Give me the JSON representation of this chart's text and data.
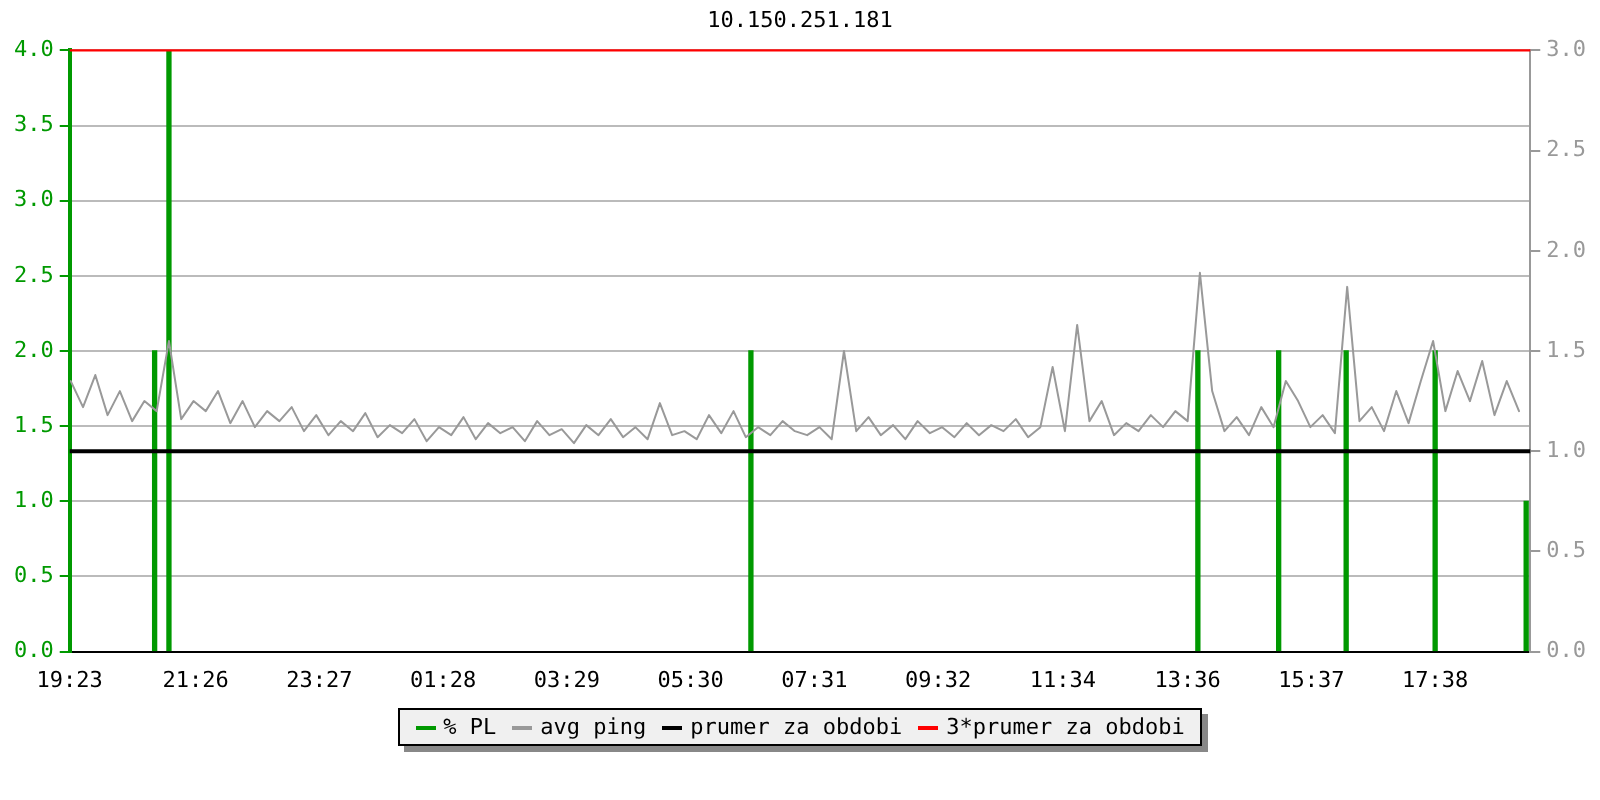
{
  "chart_data": {
    "type": "line",
    "title": "10.150.251.181",
    "xlim": [
      "--01-01T19:23",
      "--01-02T19:11"
    ],
    "xticks": [
      {
        "value": "--01-01T19:23",
        "label": "19:23"
      },
      {
        "value": "--01-01T21:26",
        "label": "21:26"
      },
      {
        "value": "--01-01T23:27",
        "label": "23:27"
      },
      {
        "value": "--01-02T01:28",
        "label": "01:28"
      },
      {
        "value": "--01-02T03:29",
        "label": "03:29"
      },
      {
        "value": "--01-02T05:30",
        "label": "05:30"
      },
      {
        "value": "--01-02T07:31",
        "label": "07:31"
      },
      {
        "value": "--01-02T09:32",
        "label": "09:32"
      },
      {
        "value": "--01-02T11:34",
        "label": "11:34"
      },
      {
        "value": "--01-02T13:36",
        "label": "13:36"
      },
      {
        "value": "--01-02T15:37",
        "label": "15:37"
      },
      {
        "value": "--01-02T17:38",
        "label": "17:38"
      }
    ],
    "ylim": [
      0,
      4
    ],
    "yticks": [
      {
        "value": 0,
        "label": "0.0"
      },
      0.5,
      {
        "value": 1,
        "label": "1.0"
      },
      1.5,
      {
        "value": 2,
        "label": "2.0"
      },
      2.5,
      {
        "value": 3,
        "label": "3.0"
      },
      3.5,
      {
        "value": 4,
        "label": "4.0"
      }
    ],
    "y2lim": [
      0,
      3
    ],
    "y2ticks": [
      {
        "value": 0,
        "label": "0.0"
      },
      0.5,
      {
        "value": 1,
        "label": "1.0"
      },
      1.5,
      {
        "value": 2,
        "label": "2.0"
      },
      2.5,
      {
        "value": 3,
        "label": "3.0"
      }
    ],
    "grid": "y",
    "legend": "bottom",
    "series": [
      {
        "name": "% PL",
        "type": "bar",
        "color": "#009900",
        "x": [
          "--01-01T20:46",
          "--01-01T21:00",
          "--01-02T06:29",
          "--01-02T13:46",
          "--01-02T15:05",
          "--01-02T16:11",
          "--01-02T17:38",
          "--01-02T19:07"
        ],
        "values": [
          2,
          4,
          2,
          2,
          2,
          2,
          2,
          1
        ]
      },
      {
        "name": "avg ping",
        "axis": "y2",
        "color": "#999999",
        "x": [
          "--01-01T19:24",
          "--01-01T19:36",
          "--01-01T19:48",
          "--01-01T20:00",
          "--01-01T20:12",
          "--01-01T20:24",
          "--01-01T20:36",
          "--01-01T20:48",
          "--01-01T21:00",
          "--01-01T21:12",
          "--01-01T21:24",
          "--01-01T21:36",
          "--01-01T21:48",
          "--01-01T22:00",
          "--01-01T22:12",
          "--01-01T22:24",
          "--01-01T22:36",
          "--01-01T22:48",
          "--01-01T23:00",
          "--01-01T23:12",
          "--01-01T23:24",
          "--01-01T23:36",
          "--01-01T23:48",
          "--01-02T00:00",
          "--01-02T00:12",
          "--01-02T00:24",
          "--01-02T00:36",
          "--01-02T00:48",
          "--01-02T01:00",
          "--01-02T01:12",
          "--01-02T01:24",
          "--01-02T01:36",
          "--01-02T01:48",
          "--01-02T02:00",
          "--01-02T02:12",
          "--01-02T02:24",
          "--01-02T02:36",
          "--01-02T02:48",
          "--01-02T03:00",
          "--01-02T03:12",
          "--01-02T03:24",
          "--01-02T03:36",
          "--01-02T03:48",
          "--01-02T04:00",
          "--01-02T04:12",
          "--01-02T04:24",
          "--01-02T04:36",
          "--01-02T04:48",
          "--01-02T05:00",
          "--01-02T05:12",
          "--01-02T05:24",
          "--01-02T05:36",
          "--01-02T05:48",
          "--01-02T06:00",
          "--01-02T06:12",
          "--01-02T06:24",
          "--01-02T06:36",
          "--01-02T06:48",
          "--01-02T07:00",
          "--01-02T07:12",
          "--01-02T07:24",
          "--01-02T07:36",
          "--01-02T07:48",
          "--01-02T08:00",
          "--01-02T08:12",
          "--01-02T08:24",
          "--01-02T08:36",
          "--01-02T08:48",
          "--01-02T09:00",
          "--01-02T09:12",
          "--01-02T09:24",
          "--01-02T09:36",
          "--01-02T09:48",
          "--01-02T10:00",
          "--01-02T10:12",
          "--01-02T10:24",
          "--01-02T10:36",
          "--01-02T10:48",
          "--01-02T11:00",
          "--01-02T11:12",
          "--01-02T11:24",
          "--01-02T11:36",
          "--01-02T11:48",
          "--01-02T12:00",
          "--01-02T12:12",
          "--01-02T12:24",
          "--01-02T12:36",
          "--01-02T12:48",
          "--01-02T13:00",
          "--01-02T13:12",
          "--01-02T13:24",
          "--01-02T13:36",
          "--01-02T13:48",
          "--01-02T14:00",
          "--01-02T14:12",
          "--01-02T14:24",
          "--01-02T14:36",
          "--01-02T14:48",
          "--01-02T15:00",
          "--01-02T15:12",
          "--01-02T15:24",
          "--01-02T15:36",
          "--01-02T15:48",
          "--01-02T16:00",
          "--01-02T16:12",
          "--01-02T16:24",
          "--01-02T16:36",
          "--01-02T16:48",
          "--01-02T17:00",
          "--01-02T17:12",
          "--01-02T17:24",
          "--01-02T17:36",
          "--01-02T17:48",
          "--01-02T18:00",
          "--01-02T18:12",
          "--01-02T18:24",
          "--01-02T18:36",
          "--01-02T18:48",
          "--01-02T19:00"
        ],
        "values": [
          1.35,
          1.22,
          1.38,
          1.18,
          1.3,
          1.15,
          1.25,
          1.2,
          1.55,
          1.16,
          1.25,
          1.2,
          1.3,
          1.14,
          1.25,
          1.12,
          1.2,
          1.15,
          1.22,
          1.1,
          1.18,
          1.08,
          1.15,
          1.1,
          1.19,
          1.07,
          1.13,
          1.09,
          1.16,
          1.05,
          1.12,
          1.08,
          1.17,
          1.06,
          1.14,
          1.09,
          1.12,
          1.05,
          1.15,
          1.08,
          1.11,
          1.04,
          1.13,
          1.08,
          1.16,
          1.07,
          1.12,
          1.06,
          1.24,
          1.08,
          1.1,
          1.06,
          1.18,
          1.09,
          1.2,
          1.07,
          1.12,
          1.08,
          1.15,
          1.1,
          1.08,
          1.12,
          1.06,
          1.5,
          1.1,
          1.17,
          1.08,
          1.13,
          1.06,
          1.15,
          1.09,
          1.12,
          1.07,
          1.14,
          1.08,
          1.13,
          1.1,
          1.16,
          1.07,
          1.12,
          1.42,
          1.1,
          1.63,
          1.15,
          1.25,
          1.08,
          1.14,
          1.1,
          1.18,
          1.12,
          1.2,
          1.15,
          1.89,
          1.3,
          1.1,
          1.17,
          1.08,
          1.22,
          1.12,
          1.35,
          1.25,
          1.12,
          1.18,
          1.09,
          1.82,
          1.15,
          1.22,
          1.1,
          1.3,
          1.14,
          1.35,
          1.55,
          1.2,
          1.4,
          1.25,
          1.45,
          1.18,
          1.35,
          1.2
        ]
      }
    ],
    "ref_lines": [
      {
        "axis": "y2",
        "value": 1,
        "label": "prumer za obdobi",
        "color": "#000000"
      },
      {
        "axis": "y2",
        "value": 3,
        "label": "3*prumer za obdobi",
        "color": "#ff0000"
      }
    ]
  }
}
